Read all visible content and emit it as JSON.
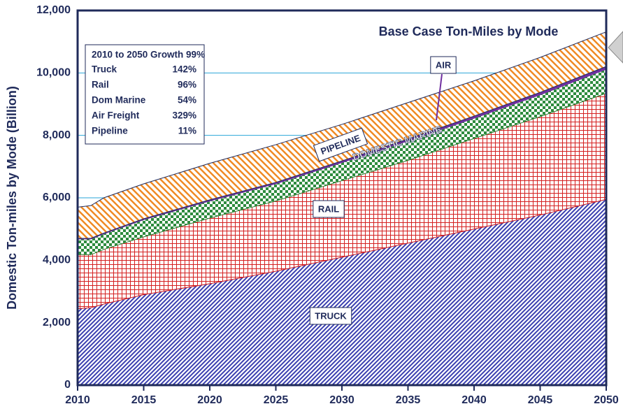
{
  "chart_data": {
    "type": "stacked_area",
    "title": "Base Case Ton-Miles by Mode",
    "y_label": "Domestic Ton-miles by Mode (Billion)",
    "x": [
      2010,
      2011,
      2012,
      2015,
      2020,
      2025,
      2030,
      2035,
      2040,
      2045,
      2050
    ],
    "series": [
      {
        "name": "TRUCK",
        "color": "#3a3fb0",
        "values": [
          2450,
          2480,
          2600,
          2900,
          3250,
          3650,
          4100,
          4550,
          5000,
          5450,
          5950
        ]
      },
      {
        "name": "RAIL",
        "color": "#d42020",
        "values": [
          1730,
          1700,
          1750,
          1850,
          2100,
          2250,
          2450,
          2650,
          2900,
          3150,
          3400
        ]
      },
      {
        "name": "DOMESTIC MARINE",
        "color": "#2e8b3e",
        "values": [
          500,
          500,
          500,
          550,
          550,
          550,
          580,
          620,
          650,
          700,
          770
        ]
      },
      {
        "name": "AIR",
        "color": "#7030a0",
        "values": [
          20,
          21,
          23,
          28,
          35,
          43,
          52,
          60,
          68,
          77,
          86
        ]
      },
      {
        "name": "PIPELINE",
        "color": "#f08a24",
        "values": [
          1000,
          1050,
          1130,
          1120,
          1170,
          1210,
          1170,
          1170,
          1130,
          1120,
          1110
        ]
      }
    ],
    "xlim": [
      2010,
      2050
    ],
    "xticks": [
      2010,
      2015,
      2020,
      2025,
      2030,
      2035,
      2040,
      2045,
      2050
    ],
    "ylim": [
      0,
      12000
    ],
    "yticks": [
      0,
      {
        "value": 2000,
        "label": "2,000"
      },
      {
        "value": 4000,
        "label": "4,000"
      },
      {
        "value": 6000,
        "label": "6,000"
      },
      {
        "value": 8000,
        "label": "8,000"
      },
      {
        "value": 10000,
        "label": "10,000"
      },
      {
        "value": 12000,
        "label": "12,000"
      }
    ],
    "grid": true,
    "growth_box": {
      "title": "2010 to 2050 Growth 99%",
      "rows": [
        [
          "Truck",
          "142%"
        ],
        [
          "Rail",
          "96%"
        ],
        [
          "Dom Marine",
          "54%"
        ],
        [
          "Air Freight",
          "329%"
        ],
        [
          "Pipeline",
          "11%"
        ]
      ]
    }
  }
}
